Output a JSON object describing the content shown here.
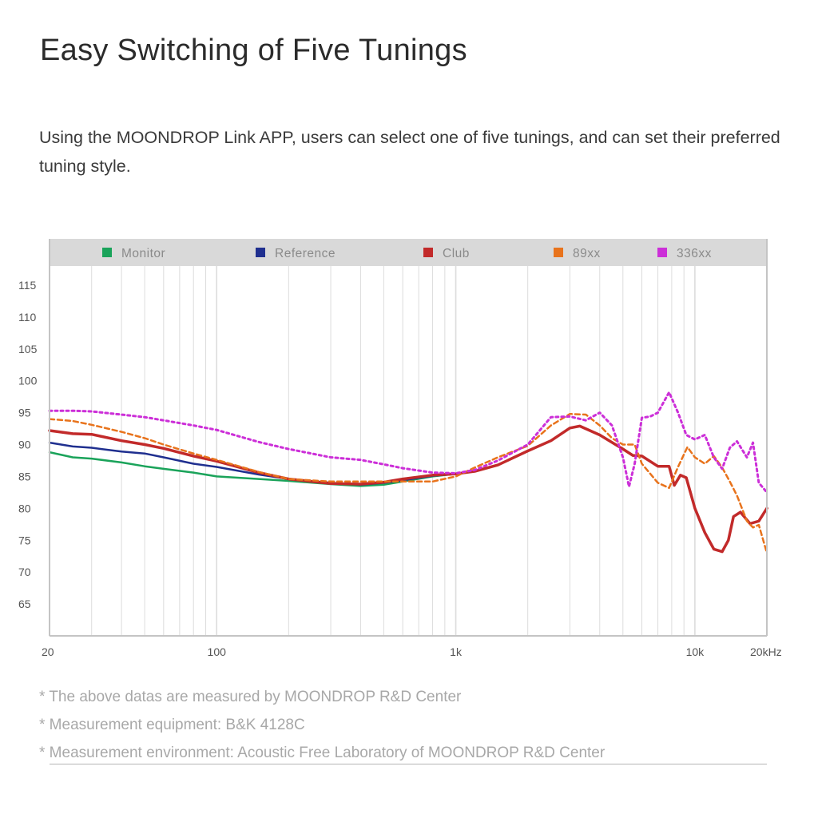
{
  "page": {
    "title": "Easy Switching of Five Tunings",
    "description": "Using the MOONDROP Link APP, users can select one of five tunings, and can set their preferred tuning style.",
    "notes": [
      "* The above datas are measured by MOONDROP R&D Center",
      "* Measurement equipment: B&K 4128C",
      "* Measurement environment: Acoustic Free Laboratory of MOONDROP R&D Center"
    ]
  },
  "chart_data": {
    "type": "line",
    "x_scale": "log",
    "xlim": [
      20,
      20000
    ],
    "ylim": [
      60,
      118
    ],
    "x_ticks": [
      {
        "value": 20,
        "label": "20"
      },
      {
        "value": 100,
        "label": "100"
      },
      {
        "value": 1000,
        "label": "1k"
      },
      {
        "value": 10000,
        "label": "10k"
      },
      {
        "value": 20000,
        "label": "20kHz"
      }
    ],
    "y_ticks": [
      65,
      70,
      75,
      80,
      85,
      90,
      95,
      100,
      105,
      110,
      115
    ],
    "grid": "vertical log-decade lines",
    "legend_position": "top",
    "series": [
      {
        "name": "Monitor",
        "color": "#1aa35a",
        "style": "solid",
        "width": 2.5,
        "points": [
          [
            20,
            88.8
          ],
          [
            25,
            88
          ],
          [
            30,
            87.8
          ],
          [
            40,
            87.2
          ],
          [
            50,
            86.6
          ],
          [
            60,
            86.2
          ],
          [
            80,
            85.6
          ],
          [
            100,
            85
          ],
          [
            150,
            84.6
          ],
          [
            200,
            84.3
          ],
          [
            300,
            83.8
          ],
          [
            400,
            83.5
          ],
          [
            500,
            83.7
          ],
          [
            600,
            84.2
          ],
          [
            800,
            85
          ],
          [
            1000,
            85.4
          ]
        ]
      },
      {
        "name": "Reference",
        "color": "#1f2f8f",
        "style": "solid",
        "width": 2.5,
        "points": [
          [
            20,
            90.3
          ],
          [
            25,
            89.7
          ],
          [
            30,
            89.5
          ],
          [
            40,
            88.9
          ],
          [
            50,
            88.6
          ],
          [
            60,
            88
          ],
          [
            80,
            87
          ],
          [
            100,
            86.5
          ],
          [
            150,
            85.3
          ],
          [
            200,
            84.6
          ],
          [
            300,
            84
          ],
          [
            400,
            83.7
          ],
          [
            500,
            84
          ],
          [
            600,
            84.4
          ],
          [
            800,
            85.1
          ],
          [
            1000,
            85.4
          ]
        ]
      },
      {
        "name": "Club",
        "color": "#c22a2a",
        "style": "solid",
        "width": 3.5,
        "points": [
          [
            20,
            92.2
          ],
          [
            25,
            91.7
          ],
          [
            30,
            91.6
          ],
          [
            40,
            90.6
          ],
          [
            50,
            90
          ],
          [
            60,
            89.4
          ],
          [
            80,
            88.2
          ],
          [
            100,
            87.4
          ],
          [
            150,
            85.6
          ],
          [
            200,
            84.6
          ],
          [
            300,
            83.9
          ],
          [
            400,
            83.8
          ],
          [
            500,
            84.1
          ],
          [
            600,
            84.6
          ],
          [
            800,
            85.2
          ],
          [
            1000,
            85.4
          ],
          [
            1200,
            85.8
          ],
          [
            1500,
            86.8
          ],
          [
            2000,
            89
          ],
          [
            2500,
            90.6
          ],
          [
            3000,
            92.6
          ],
          [
            3300,
            92.9
          ],
          [
            4000,
            91.5
          ],
          [
            5000,
            89.3
          ],
          [
            5500,
            88.3
          ],
          [
            6000,
            88.2
          ],
          [
            7000,
            86.6
          ],
          [
            7800,
            86.6
          ],
          [
            8200,
            83.6
          ],
          [
            8700,
            85.2
          ],
          [
            9200,
            84.8
          ],
          [
            10000,
            80
          ],
          [
            11000,
            76.2
          ],
          [
            12000,
            73.6
          ],
          [
            13000,
            73.2
          ],
          [
            13800,
            75
          ],
          [
            14500,
            78.7
          ],
          [
            15500,
            79.4
          ],
          [
            17000,
            77.6
          ],
          [
            18500,
            78
          ],
          [
            20000,
            80
          ]
        ]
      },
      {
        "name": "89xx",
        "color": "#e8731c",
        "style": "dashed",
        "width": 2.5,
        "points": [
          [
            20,
            94
          ],
          [
            25,
            93.7
          ],
          [
            30,
            93.1
          ],
          [
            40,
            92
          ],
          [
            50,
            91
          ],
          [
            60,
            90
          ],
          [
            80,
            88.6
          ],
          [
            100,
            87.6
          ],
          [
            150,
            85.7
          ],
          [
            200,
            84.6
          ],
          [
            300,
            84.2
          ],
          [
            400,
            84.2
          ],
          [
            500,
            84.2
          ],
          [
            600,
            84.2
          ],
          [
            800,
            84.2
          ],
          [
            1000,
            85
          ],
          [
            1200,
            86.4
          ],
          [
            1500,
            88
          ],
          [
            2000,
            89.8
          ],
          [
            2500,
            93
          ],
          [
            3000,
            94.8
          ],
          [
            3500,
            94.7
          ],
          [
            4000,
            93
          ],
          [
            4500,
            91
          ],
          [
            5000,
            90
          ],
          [
            5600,
            90
          ],
          [
            6000,
            87
          ],
          [
            7000,
            84
          ],
          [
            7800,
            83.2
          ],
          [
            8500,
            86.5
          ],
          [
            9300,
            89.6
          ],
          [
            10000,
            88
          ],
          [
            11000,
            87
          ],
          [
            12000,
            88.2
          ],
          [
            13000,
            86.4
          ],
          [
            14000,
            84.2
          ],
          [
            15000,
            82
          ],
          [
            16500,
            78
          ],
          [
            17500,
            77
          ],
          [
            18500,
            77.4
          ],
          [
            20000,
            73
          ]
        ]
      },
      {
        "name": "336xx",
        "color": "#cc2fd8",
        "style": "dotted",
        "width": 3,
        "points": [
          [
            20,
            95.3
          ],
          [
            25,
            95.3
          ],
          [
            30,
            95.2
          ],
          [
            40,
            94.7
          ],
          [
            50,
            94.3
          ],
          [
            60,
            93.8
          ],
          [
            80,
            93
          ],
          [
            100,
            92.3
          ],
          [
            150,
            90.4
          ],
          [
            200,
            89.3
          ],
          [
            300,
            88
          ],
          [
            400,
            87.6
          ],
          [
            500,
            86.9
          ],
          [
            600,
            86.3
          ],
          [
            800,
            85.6
          ],
          [
            1000,
            85.5
          ],
          [
            1200,
            86
          ],
          [
            1500,
            87.5
          ],
          [
            2000,
            90
          ],
          [
            2500,
            94.3
          ],
          [
            3000,
            94.4
          ],
          [
            3500,
            93.8
          ],
          [
            4000,
            95
          ],
          [
            4500,
            93
          ],
          [
            5000,
            88
          ],
          [
            5300,
            83.4
          ],
          [
            5600,
            87
          ],
          [
            6000,
            94.2
          ],
          [
            6500,
            94.4
          ],
          [
            7000,
            95
          ],
          [
            7800,
            98.2
          ],
          [
            8500,
            95
          ],
          [
            9200,
            91.5
          ],
          [
            10000,
            90.8
          ],
          [
            11000,
            91.5
          ],
          [
            12000,
            88
          ],
          [
            13000,
            86.2
          ],
          [
            14000,
            89.5
          ],
          [
            15000,
            90.5
          ],
          [
            16500,
            88
          ],
          [
            17500,
            90.3
          ],
          [
            18500,
            84
          ],
          [
            19500,
            83
          ],
          [
            20000,
            82.5
          ]
        ]
      }
    ]
  },
  "style": {
    "legend_bar_color": "#d9d9d9",
    "frame_color": "#c4c4c4",
    "grid_color": "#dcdcdc",
    "axis_label_color": "#555555",
    "legend_text_color": "#8a8a8a"
  }
}
